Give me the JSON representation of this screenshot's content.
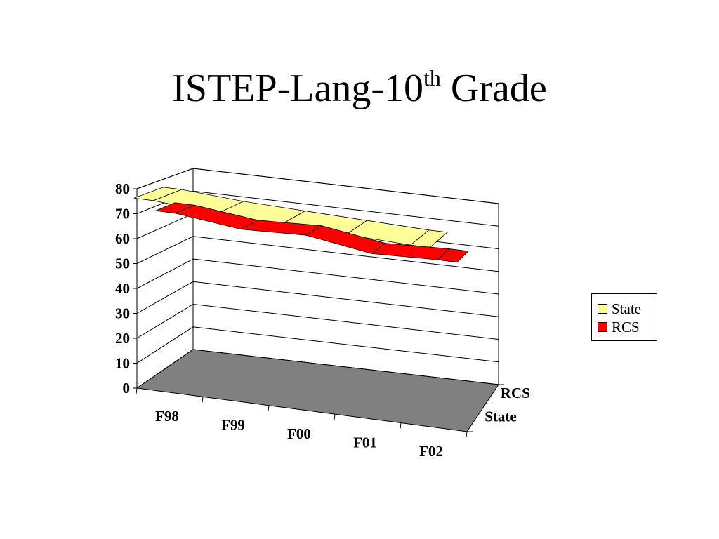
{
  "slide": {
    "title_main": "ISTEP-Lang-10",
    "title_sup": "th",
    "title_rest": " Grade"
  },
  "legend": {
    "items": [
      {
        "label": "State",
        "color": "#ffff99"
      },
      {
        "label": "RCS",
        "color": "#ff0000"
      }
    ]
  },
  "chart_data": {
    "type": "3d-line",
    "categories": [
      "F98",
      "F99",
      "F00",
      "F01",
      "F02"
    ],
    "depth_labels": [
      "RCS",
      "State"
    ],
    "series": [
      {
        "name": "State",
        "values": [
          72,
          70,
          69,
          68,
          67
        ],
        "color": "#ffff99"
      },
      {
        "name": "RCS",
        "values": [
          71,
          68,
          69,
          65,
          66
        ],
        "color": "#ff0000"
      }
    ],
    "y_ticks": [
      "0",
      "10",
      "20",
      "30",
      "40",
      "50",
      "60",
      "70",
      "80"
    ],
    "ylim": [
      0,
      80
    ],
    "grid": true,
    "floor_color": "#808080",
    "legend_position": "right"
  }
}
